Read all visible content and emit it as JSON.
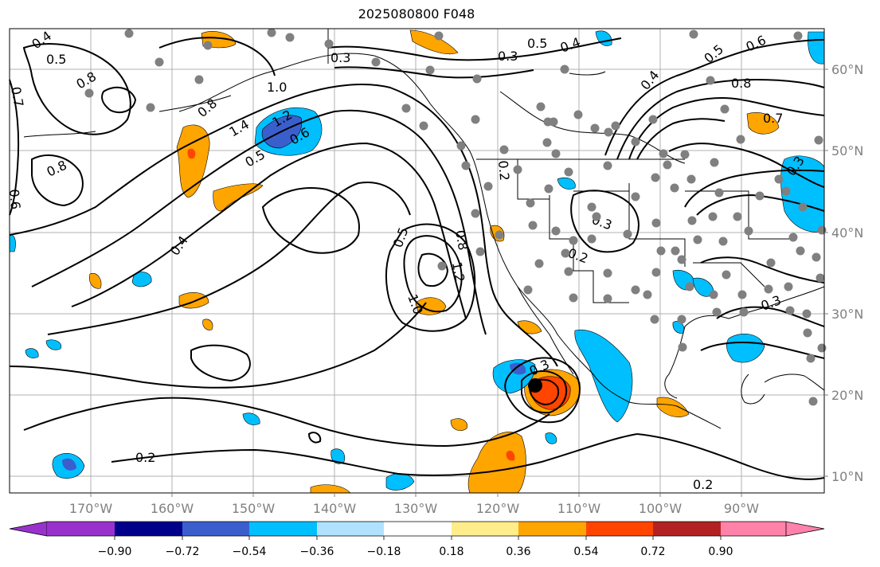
{
  "title": "2025080800 F048",
  "longitude_labels": [
    "170°W",
    "160°W",
    "150°W",
    "140°W",
    "130°W",
    "120°W",
    "110°W",
    "100°W",
    "90°W"
  ],
  "latitude_labels": [
    "60°N",
    "50°N",
    "40°N",
    "30°N",
    "20°N",
    "10°N"
  ],
  "colorbar": {
    "tick_labels": [
      "−0.90",
      "−0.72",
      "−0.54",
      "−0.36",
      "−0.18",
      "0.18",
      "0.36",
      "0.54",
      "0.72",
      "0.90"
    ],
    "colors": [
      "#9932cc",
      "#00008b",
      "#3a5fcd",
      "#00bfff",
      "#b0e2ff",
      "#ffffff",
      "#ffec8b",
      "#ffa500",
      "#ff4500",
      "#b22222",
      "#ff82ab"
    ]
  },
  "contour_labels": [
    "0.5",
    "0.4",
    "0.7",
    "0.8",
    "0.6",
    "1.0",
    "1.2",
    "1.4",
    "0.3",
    "0.2",
    "0.3",
    "0.5",
    "0.4",
    "0.6",
    "0.3",
    "0.8",
    "0.7",
    "0.3",
    "0.2",
    "1.0",
    "1.2",
    "0.8",
    "0.5",
    "0.3",
    "0.2",
    "0.2",
    "0.3",
    "0.4"
  ],
  "station_color": "#808080",
  "storm_marker_color": "#000000"
}
